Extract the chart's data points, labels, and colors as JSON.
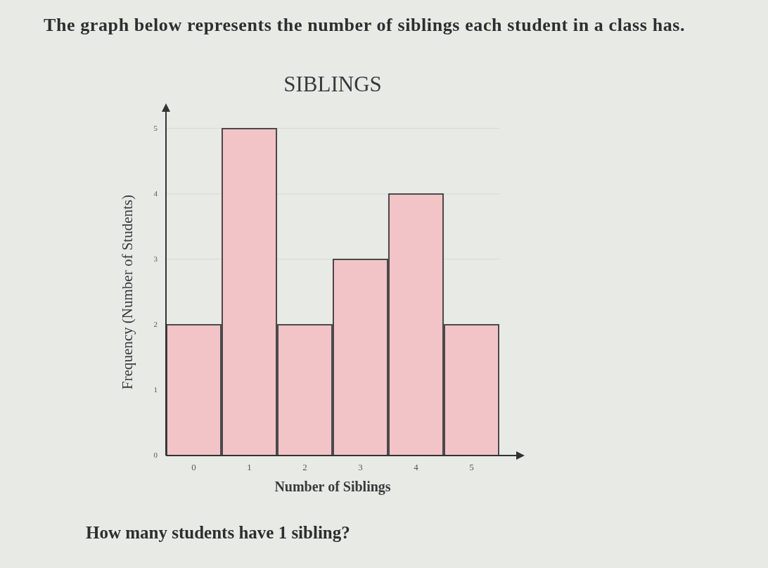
{
  "chart_data": {
    "type": "bar",
    "title": "SIBLINGS",
    "xlabel": "Number of Siblings",
    "ylabel": "Frequency (Number of Students)",
    "categories": [
      "0",
      "1",
      "2",
      "3",
      "4",
      "5"
    ],
    "values": [
      2,
      5,
      2,
      3,
      4,
      2
    ],
    "color": "#f2c4c8",
    "ylim": [
      0,
      5
    ],
    "yticks": [
      0,
      1,
      2,
      3,
      4,
      5
    ],
    "grid": "y",
    "annotations": [
      "The graph below represents the number of siblings each student in a class has.",
      "How many students have 1 sibling?"
    ]
  }
}
